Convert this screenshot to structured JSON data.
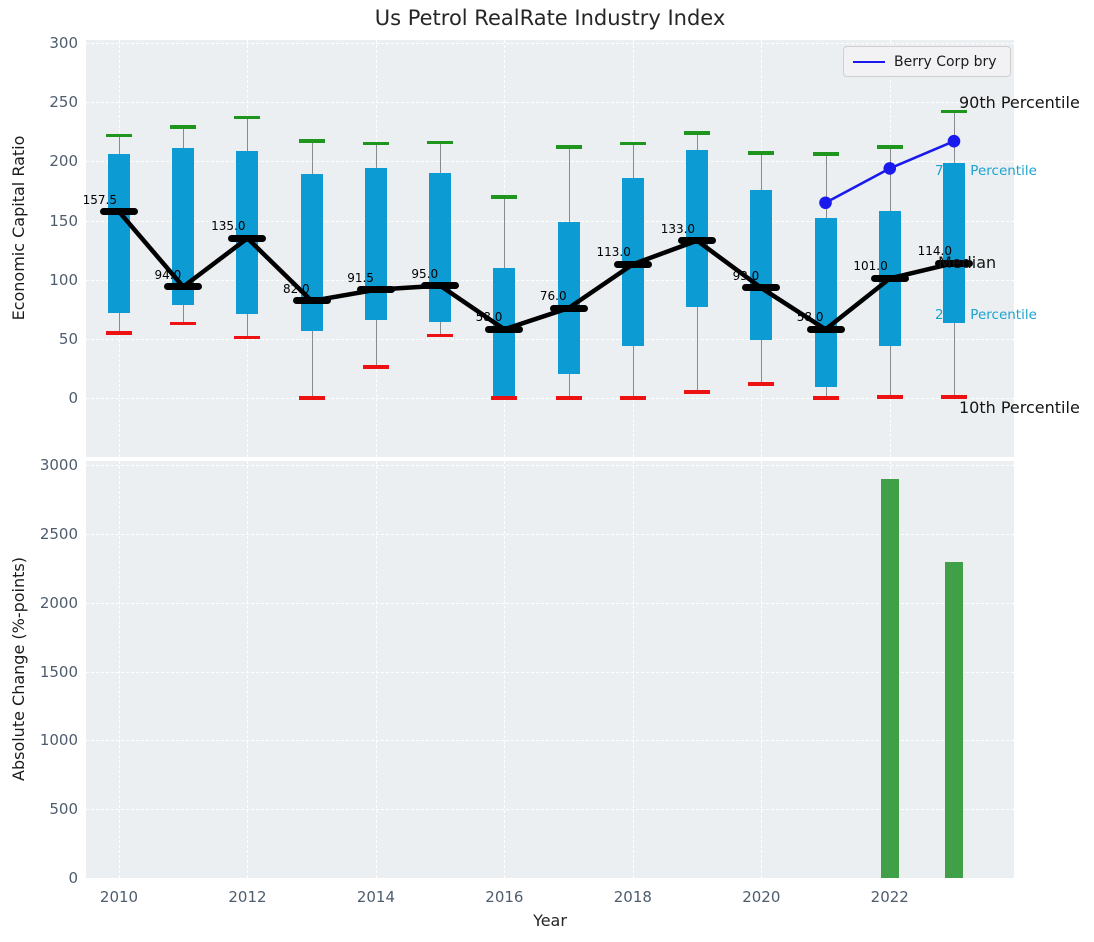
{
  "title": "Us Petrol RealRate Industry Index",
  "axes": {
    "top_ylabel": "Economic Capital Ratio",
    "bottom_ylabel": "Absolute Change (%-points)",
    "xlabel": "Year"
  },
  "legend": {
    "label": "Berry Corp bry"
  },
  "annotations": {
    "p90": "90th Percentile",
    "p75": "75th Percentile",
    "median": "Median",
    "p25": "25th Percentile",
    "p10": "10th Percentile"
  },
  "colors": {
    "axes_bg": "#eceff1",
    "grid": "#ffffff",
    "box_fill": "#0d9bd3",
    "whisker": "#8a8a8a",
    "p90_cap": "#1e961e",
    "p10_cap": "#ee1111",
    "median": "#000000",
    "trend_line": "#000000",
    "series_line": "#1a1aee",
    "bar_fill": "#3fa047",
    "annotation_cyan": "#1ba3d1",
    "tick_label": "#4e5d6e"
  },
  "chart_data": [
    {
      "type": "box",
      "title": "Us Petrol RealRate Industry Index",
      "ylabel": "Economic Capital Ratio",
      "ylim": [
        0,
        300
      ],
      "yticks": [
        0,
        50,
        100,
        150,
        200,
        250,
        300
      ],
      "grid": true,
      "legend_position": "upper right",
      "years": [
        2010,
        2011,
        2012,
        2013,
        2014,
        2015,
        2016,
        2017,
        2018,
        2019,
        2020,
        2021,
        2022,
        2023
      ],
      "p90": [
        222,
        229,
        237,
        217,
        215,
        216,
        170,
        212,
        215,
        224,
        207,
        206,
        212,
        242
      ],
      "p75": [
        206,
        211,
        209,
        189,
        194,
        190,
        110,
        149,
        186,
        210,
        176,
        152,
        158,
        199
      ],
      "median": [
        157.5,
        94.0,
        135.0,
        82.0,
        91.5,
        95.0,
        58.0,
        76.0,
        113.0,
        133.0,
        93.0,
        58.0,
        101.0,
        114.0
      ],
      "median_labels": [
        "157.5",
        "94.0",
        "135.0",
        "82.0",
        "91.5",
        "95.0",
        "58.0",
        "76.0",
        "113.0",
        "133.0",
        "93.0",
        "58.0",
        "101.0",
        "114.0"
      ],
      "p25": [
        72,
        79,
        71,
        57,
        66,
        64,
        1,
        20,
        44,
        77,
        49,
        9,
        44,
        63
      ],
      "p10": [
        55,
        63,
        51,
        0,
        26,
        53,
        0,
        0,
        0,
        5,
        12,
        0,
        1,
        1
      ],
      "series": [
        {
          "name": "Berry Corp bry",
          "x": [
            2021,
            2022,
            2023
          ],
          "y": [
            165,
            194,
            217
          ]
        }
      ]
    },
    {
      "type": "bar",
      "ylabel": "Absolute Change (%-points)",
      "xlabel": "Year",
      "ylim": [
        0,
        3000
      ],
      "yticks": [
        0,
        500,
        1000,
        1500,
        2000,
        2500,
        3000
      ],
      "xticks": [
        2010,
        2012,
        2014,
        2016,
        2018,
        2020,
        2022
      ],
      "categories": [
        2022,
        2023
      ],
      "values": [
        2900,
        2295
      ],
      "grid": true
    }
  ]
}
